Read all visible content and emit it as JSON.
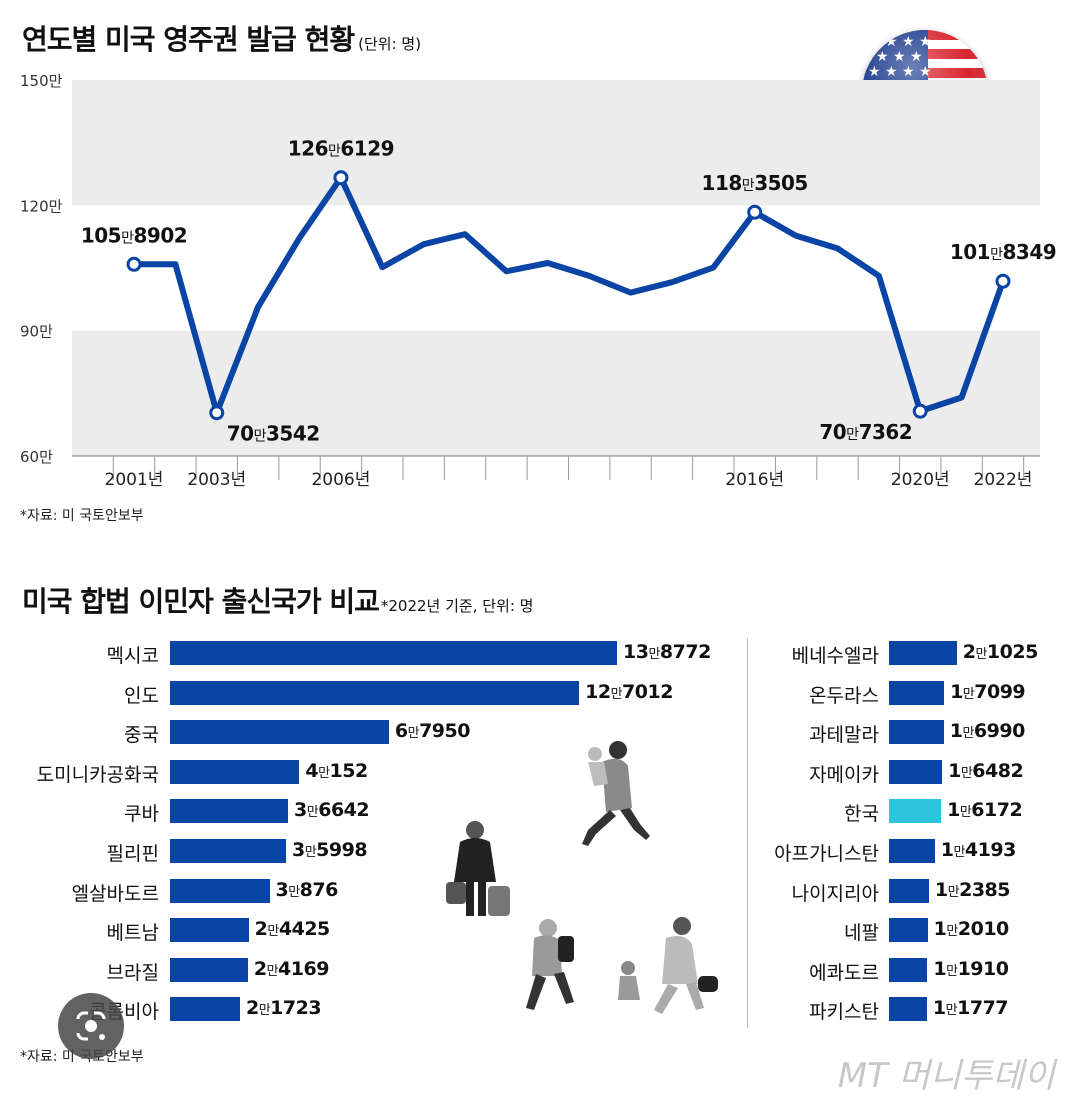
{
  "title1": "연도별 미국 영주권 발급 현황",
  "title1_unit": "(단위: 명)",
  "source1": "*자료: 미 국토안보부",
  "title2": "미국 합법 이민자 출신국가 비교",
  "title2_unit": "*2022년 기준, 단위: 명",
  "source2": "*자료: 미 국토안보부",
  "watermark": "MT 머니투데이",
  "colors": {
    "line": "#0a44a5",
    "bar": "#0a44a5",
    "highlight_bar": "#2ec4dc",
    "band": "#ececec"
  },
  "icons": [
    "us-flag-icon",
    "google-lens-icon",
    "migrant-people-illustration"
  ],
  "chart_data": [
    {
      "type": "line",
      "title": "연도별 미국 영주권 발급 현황",
      "unit": "명",
      "x": [
        2001,
        2002,
        2003,
        2004,
        2005,
        2006,
        2007,
        2008,
        2009,
        2010,
        2011,
        2012,
        2013,
        2014,
        2015,
        2016,
        2017,
        2018,
        2019,
        2020,
        2021,
        2022
      ],
      "y": [
        1058902,
        1059000,
        703542,
        957000,
        1122000,
        1266129,
        1052000,
        1107000,
        1131000,
        1042000,
        1062000,
        1031000,
        991000,
        1016000,
        1051000,
        1183505,
        1127000,
        1097000,
        1031000,
        707362,
        740000,
        1018349
      ],
      "xticks": [
        {
          "x": 2001,
          "label": "2001년"
        },
        {
          "x": 2002,
          "label": ""
        },
        {
          "x": 2003,
          "label": "2003년"
        },
        {
          "x": 2004,
          "label": ""
        },
        {
          "x": 2005,
          "label": ""
        },
        {
          "x": 2006,
          "label": "2006년"
        },
        {
          "x": 2007,
          "label": ""
        },
        {
          "x": 2008,
          "label": ""
        },
        {
          "x": 2009,
          "label": ""
        },
        {
          "x": 2010,
          "label": ""
        },
        {
          "x": 2011,
          "label": ""
        },
        {
          "x": 2012,
          "label": ""
        },
        {
          "x": 2013,
          "label": ""
        },
        {
          "x": 2014,
          "label": ""
        },
        {
          "x": 2015,
          "label": ""
        },
        {
          "x": 2016,
          "label": "2016년"
        },
        {
          "x": 2017,
          "label": ""
        },
        {
          "x": 2018,
          "label": ""
        },
        {
          "x": 2019,
          "label": ""
        },
        {
          "x": 2020,
          "label": "2020년"
        },
        {
          "x": 2021,
          "label": ""
        },
        {
          "x": 2022,
          "label": "2022년"
        }
      ],
      "yticks": [
        {
          "v": 600000,
          "label": "60만"
        },
        {
          "v": 900000,
          "label": "90만"
        },
        {
          "v": 1200000,
          "label": "120만"
        },
        {
          "v": 1500000,
          "label": "150만"
        }
      ],
      "ylim": [
        600000,
        1500000
      ],
      "annotations": [
        {
          "x": 2001,
          "y": 1058902,
          "big": "105",
          "man": "만",
          "rest": "8902",
          "pos": "above"
        },
        {
          "x": 2003,
          "y": 703542,
          "big": "70",
          "man": "만",
          "rest": "3542",
          "pos": "below-right"
        },
        {
          "x": 2006,
          "y": 1266129,
          "big": "126",
          "man": "만",
          "rest": "6129",
          "pos": "above"
        },
        {
          "x": 2016,
          "y": 1183505,
          "big": "118",
          "man": "만",
          "rest": "3505",
          "pos": "above"
        },
        {
          "x": 2020,
          "y": 707362,
          "big": "70",
          "man": "만",
          "rest": "7362",
          "pos": "below-left"
        },
        {
          "x": 2022,
          "y": 1018349,
          "big": "101",
          "man": "만",
          "rest": "8349",
          "pos": "above"
        }
      ]
    },
    {
      "type": "bar",
      "title": "미국 합법 이민자 출신국가 비교",
      "unit": "명",
      "left": [
        {
          "name": "멕시코",
          "value": 138772,
          "man": "13",
          "rest": "8772"
        },
        {
          "name": "인도",
          "value": 127012,
          "man": "12",
          "rest": "7012"
        },
        {
          "name": "중국",
          "value": 67950,
          "man": "6",
          "rest": "7950"
        },
        {
          "name": "도미니카공화국",
          "value": 40152,
          "man": "4",
          "rest": "152"
        },
        {
          "name": "쿠바",
          "value": 36642,
          "man": "3",
          "rest": "6642"
        },
        {
          "name": "필리핀",
          "value": 35998,
          "man": "3",
          "rest": "5998"
        },
        {
          "name": "엘살바도르",
          "value": 30876,
          "man": "3",
          "rest": "876"
        },
        {
          "name": "베트남",
          "value": 24425,
          "man": "2",
          "rest": "4425"
        },
        {
          "name": "브라질",
          "value": 24169,
          "man": "2",
          "rest": "4169"
        },
        {
          "name": "콜롬비아",
          "value": 21723,
          "man": "2",
          "rest": "1723"
        }
      ],
      "right": [
        {
          "name": "베네수엘라",
          "value": 21025,
          "man": "2",
          "rest": "1025"
        },
        {
          "name": "온두라스",
          "value": 17099,
          "man": "1",
          "rest": "7099"
        },
        {
          "name": "과테말라",
          "value": 16990,
          "man": "1",
          "rest": "6990"
        },
        {
          "name": "자메이카",
          "value": 16482,
          "man": "1",
          "rest": "6482"
        },
        {
          "name": "한국",
          "value": 16172,
          "man": "1",
          "rest": "6172",
          "highlight": true
        },
        {
          "name": "아프가니스탄",
          "value": 14193,
          "man": "1",
          "rest": "4193"
        },
        {
          "name": "나이지리아",
          "value": 12385,
          "man": "1",
          "rest": "2385"
        },
        {
          "name": "네팔",
          "value": 12010,
          "man": "1",
          "rest": "2010"
        },
        {
          "name": "에콰도르",
          "value": 11910,
          "man": "1",
          "rest": "1910"
        },
        {
          "name": "파키스탄",
          "value": 11777,
          "man": "1",
          "rest": "1777"
        }
      ]
    }
  ]
}
